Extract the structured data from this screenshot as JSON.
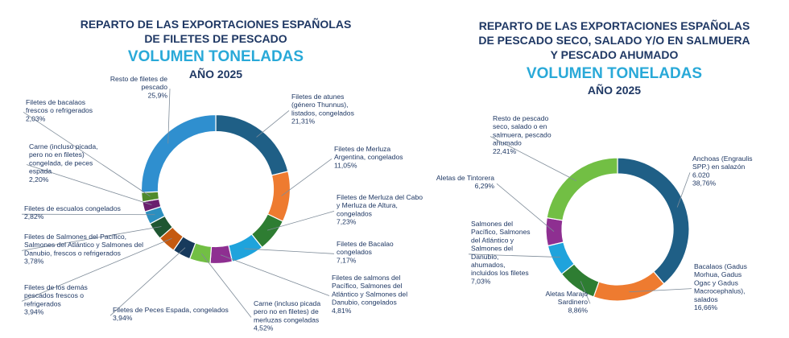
{
  "chart_data": [
    {
      "type": "pie",
      "title_lines": [
        "REPARTO DE LAS EXPORTACIONES ESPAÑOLAS",
        "DE FILETES DE PESCADO"
      ],
      "subtitle": "VOLUMEN TONELADAS",
      "year_label": "AÑO 2025",
      "slices": [
        {
          "name_lines": [
            "Filetes de atunes",
            "(género Thunnus),",
            "listados, congelados"
          ],
          "pct_label": "21,31%",
          "value": 21.31,
          "color": "#1f5f86"
        },
        {
          "name_lines": [
            "Filetes de Merluza",
            "Argentina, congelados"
          ],
          "pct_label": "11,05%",
          "value": 11.05,
          "color": "#ee7b30"
        },
        {
          "name_lines": [
            "Filetes de Merluza del Cabo",
            "y Merluza de Altura,",
            "congelados"
          ],
          "pct_label": "7,23%",
          "value": 7.23,
          "color": "#2e7d32"
        },
        {
          "name_lines": [
            "Filetes de Bacalao",
            "congelados"
          ],
          "pct_label": "7,17%",
          "value": 7.17,
          "color": "#1fa3dc"
        },
        {
          "name_lines": [
            "Filetes de salmons del",
            "Pacífico, Salmones del",
            "Atlántico y Salmones del",
            "Danubio, congelados"
          ],
          "pct_label": "4,81%",
          "value": 4.81,
          "color": "#8e2f91"
        },
        {
          "name_lines": [
            "Carne (incluso picada",
            "pero no en filetes) de",
            "merluzas congeladas"
          ],
          "pct_label": "4,52%",
          "value": 4.52,
          "color": "#72bf44"
        },
        {
          "name_lines": [
            "Filetes de Peces Espada, congelados"
          ],
          "pct_label": "3,94%",
          "value": 3.94,
          "color": "#173a5c"
        },
        {
          "name_lines": [
            "Filetes de los demás",
            "pescados frescos o",
            "refrigerados"
          ],
          "pct_label": "3,94%",
          "value": 3.94,
          "color": "#c55a11"
        },
        {
          "name_lines": [
            "Filetes de Salmones del Pacífico,",
            "Salmones del Atlántico y Salmones del",
            "Danubio, frescos o refrigerados"
          ],
          "pct_label": "3,78%",
          "value": 3.78,
          "color": "#1e5631"
        },
        {
          "name_lines": [
            "Filetes de escualos congelados"
          ],
          "pct_label": "2,82%",
          "value": 2.82,
          "color": "#2c8fbf"
        },
        {
          "name_lines": [
            "Carne (incluso picada,",
            "pero no en filetes)",
            "congelada, de peces",
            "espada"
          ],
          "pct_label": "2,20%",
          "value": 2.2,
          "color": "#6a1f6e"
        },
        {
          "name_lines": [
            "Filetes de bacalaos",
            "frescos o refrigerados"
          ],
          "pct_label": "2,03%",
          "value": 2.03,
          "color": "#4f8a2c"
        },
        {
          "name_lines": [
            "Resto de filetes de",
            "pescado"
          ],
          "pct_label": "25,9%",
          "value": 25.9,
          "color": "#2f8fcf"
        }
      ]
    },
    {
      "type": "pie",
      "title_lines": [
        "REPARTO DE LAS EXPORTACIONES ESPAÑOLAS",
        "DE PESCADO SECO, SALADO Y/O EN SALMUERA",
        "Y PESCADO AHUMADO"
      ],
      "subtitle": "VOLUMEN TONELADAS",
      "year_label": "AÑO 2025",
      "slices": [
        {
          "name_lines": [
            "Anchoas (Engraulis",
            "SPP.) en salazón",
            "6.020"
          ],
          "pct_label": "38,76%",
          "value": 38.76,
          "color": "#1f5f86"
        },
        {
          "name_lines": [
            "Bacalaos (Gadus",
            "Morhua, Gadus",
            "Ogac y Gadus",
            "Macrocephalus),",
            "salados"
          ],
          "pct_label": "16,66%",
          "value": 16.66,
          "color": "#ee7b30"
        },
        {
          "name_lines": [
            "Aletas Marajo",
            "Sardinero"
          ],
          "pct_label": "8,86%",
          "value": 8.86,
          "color": "#2e7d32"
        },
        {
          "name_lines": [
            "Salmones del",
            "Pacífico, Salmones",
            "del Atlántico y",
            "Salmones del",
            "Danubio,",
            "ahumados,",
            "incluidos los filetes"
          ],
          "pct_label": "7,03%",
          "value": 7.03,
          "color": "#1fa3dc"
        },
        {
          "name_lines": [
            "Aletas de Tintorera"
          ],
          "pct_label": "6,29%",
          "value": 6.29,
          "color": "#8e2f91"
        },
        {
          "name_lines": [
            "Resto de pescado",
            "seco, salado o en",
            "salmuera, pescado",
            "ahumado"
          ],
          "pct_label": "22,41%",
          "value": 22.41,
          "color": "#72bf44"
        }
      ]
    }
  ]
}
